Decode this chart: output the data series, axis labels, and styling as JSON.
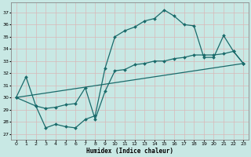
{
  "xlabel": "Humidex (Indice chaleur)",
  "background_color": "#c8e8e4",
  "grid_color": "#d8b8b8",
  "line_color": "#1a6b6b",
  "xlim": [
    -0.5,
    23.5
  ],
  "ylim": [
    26.5,
    37.8
  ],
  "yticks": [
    27,
    28,
    29,
    30,
    31,
    32,
    33,
    34,
    35,
    36,
    37
  ],
  "xticks": [
    0,
    1,
    2,
    3,
    4,
    5,
    6,
    7,
    8,
    9,
    10,
    11,
    12,
    13,
    14,
    15,
    16,
    17,
    18,
    19,
    20,
    21,
    22,
    23
  ],
  "line1_x": [
    0,
    1,
    2,
    3,
    4,
    5,
    6,
    7,
    8,
    9,
    10,
    11,
    12,
    13,
    14,
    15,
    16,
    17,
    18,
    19,
    20,
    21,
    22,
    23
  ],
  "line1_y": [
    30.0,
    31.7,
    29.3,
    27.5,
    27.8,
    27.6,
    27.5,
    28.2,
    28.5,
    32.4,
    35.0,
    35.5,
    35.8,
    36.3,
    36.5,
    37.2,
    36.7,
    36.0,
    35.9,
    33.3,
    33.3,
    35.1,
    33.8,
    32.8
  ],
  "line2_x": [
    0,
    2,
    3,
    4,
    5,
    6,
    7,
    8,
    9,
    10,
    11,
    12,
    13,
    14,
    15,
    16,
    17,
    18,
    19,
    20,
    21,
    22,
    23
  ],
  "line2_y": [
    30.0,
    29.3,
    29.1,
    29.2,
    29.4,
    29.5,
    30.8,
    28.2,
    30.5,
    32.2,
    32.3,
    32.7,
    32.8,
    33.0,
    33.0,
    33.2,
    33.3,
    33.5,
    33.5,
    33.5,
    33.6,
    33.8,
    32.8
  ],
  "line3_x": [
    0,
    23
  ],
  "line3_y": [
    30.0,
    32.8
  ]
}
